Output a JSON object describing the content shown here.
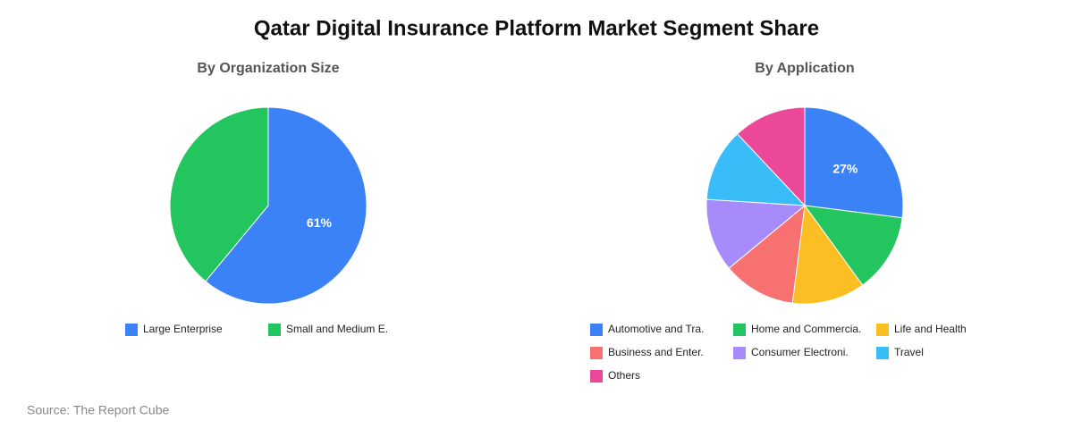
{
  "title": "Qatar Digital Insurance Platform Market Segment Share",
  "source": "Source: The Report Cube",
  "chart_data": [
    {
      "type": "pie",
      "title": "By Organization Size",
      "categories": [
        "Large Enterprise",
        "Small and Medium E."
      ],
      "values": [
        61,
        39
      ],
      "value_labels": [
        "61%",
        null
      ],
      "colors": [
        "#3b82f6",
        "#22c55e"
      ]
    },
    {
      "type": "pie",
      "title": "By Application",
      "categories": [
        "Automotive and Tra.",
        "Home and Commercia.",
        "Life and Health",
        "Business and Enter.",
        "Consumer Electroni.",
        "Travel",
        "Others"
      ],
      "values": [
        27,
        13,
        12,
        12,
        12,
        12,
        12
      ],
      "value_labels": [
        "27%",
        null,
        null,
        null,
        null,
        null,
        null
      ],
      "colors": [
        "#3b82f6",
        "#22c55e",
        "#fbbf24",
        "#f87171",
        "#a78bfa",
        "#38bdf8",
        "#ec4899"
      ]
    }
  ]
}
